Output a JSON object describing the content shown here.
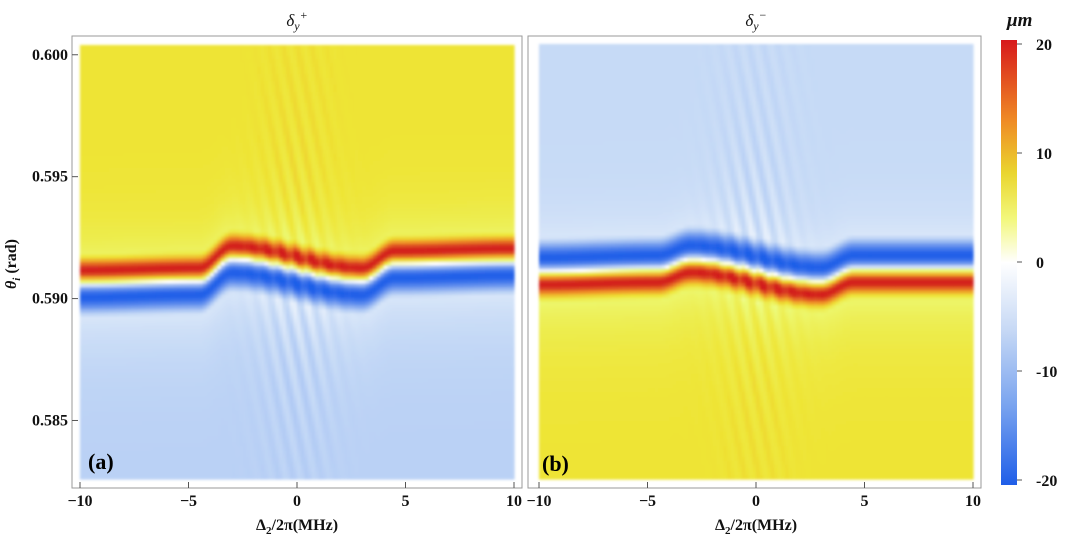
{
  "chart_data": [
    {
      "type": "heatmap",
      "panel_label": "(a)",
      "title": "δy+",
      "title_base": "δ",
      "title_sub": "y",
      "title_sup": "+",
      "xlabel": "Δ2/2π(MHz)",
      "xlabel_base": "Δ",
      "xlabel_sub": "2",
      "xlabel_rest": "/2π(MHz)",
      "ylabel": "θi (rad)",
      "ylabel_base": "θ",
      "ylabel_sub": "i",
      "ylabel_rest": " (rad)",
      "xlim": [
        -10,
        10
      ],
      "ylim": [
        0.5826,
        0.6004
      ],
      "xticks": [
        -10,
        -5,
        0,
        5,
        10
      ],
      "xtick_labels": [
        "−10",
        "−5",
        "0",
        "5",
        "10"
      ],
      "yticks": [
        0.585,
        0.59,
        0.595,
        0.6
      ],
      "ytick_labels": [
        "0.585",
        "0.590",
        "0.595",
        "0.600"
      ],
      "value_range": [
        -20,
        20
      ],
      "sign": 1,
      "zero_line": {
        "detuning": [
          -10,
          -4.5,
          -3,
          3,
          4.5,
          10
        ],
        "theta": [
          0.5906,
          0.5907,
          0.5916,
          0.5907,
          0.5914,
          0.5915
        ]
      },
      "extrema": "+20 just above the zero line, −20 just below; relaxes to about +9 at θi = 0.600 and −6 at θi = 0.583"
    },
    {
      "type": "heatmap",
      "panel_label": "(b)",
      "title": "δy−",
      "title_base": "δ",
      "title_sub": "y",
      "title_sup": "−",
      "xlabel": "Δ2/2π(MHz)",
      "xlabel_base": "Δ",
      "xlabel_sub": "2",
      "xlabel_rest": "/2π(MHz)",
      "xlim": [
        -10,
        10
      ],
      "ylim": [
        0.5826,
        0.6004
      ],
      "xticks": [
        -10,
        -5,
        0,
        5,
        10
      ],
      "xtick_labels": [
        "−10",
        "−5",
        "0",
        "5",
        "10"
      ],
      "value_range": [
        -20,
        20
      ],
      "sign": -1,
      "zero_line": {
        "detuning": [
          -10,
          -4.5,
          -3,
          3,
          4.5,
          10
        ],
        "theta": [
          0.5911,
          0.5912,
          0.5916,
          0.5907,
          0.5912,
          0.5912
        ]
      },
      "extrema": "−20 just above the zero line, +20 just below; relaxes to about −5 at θi = 0.600 and +9 at θi = 0.583"
    }
  ],
  "colorbar": {
    "unit": "μm",
    "ticks": [
      20,
      10,
      0,
      -10,
      -20
    ],
    "tick_labels": [
      "20",
      "10",
      "0",
      "-10",
      "-20"
    ],
    "colors": [
      "#d7191c",
      "#f0e42a",
      "#ffffff",
      "#7aa4ef",
      "#1f5ee8"
    ]
  }
}
